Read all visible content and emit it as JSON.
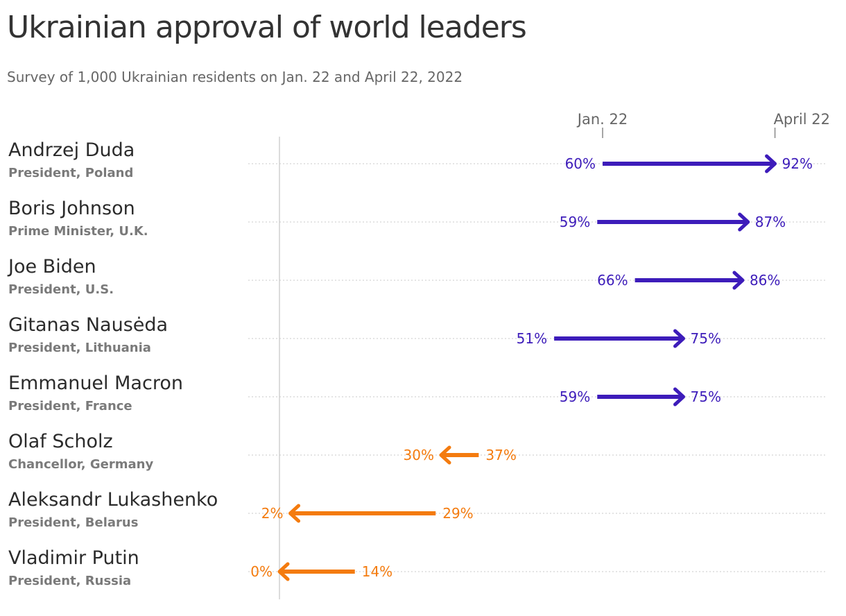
{
  "title": "Ukrainian approval of world leaders",
  "subtitle": "Survey of 1,000 Ukrainian residents on Jan. 22 and April 22, 2022",
  "colors": {
    "increase": "#3d1cba",
    "decrease": "#f47b0e",
    "grid": "#c8c8c8",
    "axis": "#d0d0d0"
  },
  "chart_data": {
    "type": "arrow",
    "columns": [
      "Jan. 22",
      "April 22"
    ],
    "unit": "%",
    "xlim": [
      0,
      100
    ],
    "rows": [
      {
        "name": "Andrzej Duda",
        "role": "President, Poland",
        "start": 60,
        "end": 92
      },
      {
        "name": "Boris Johnson",
        "role": "Prime Minister, U.K.",
        "start": 59,
        "end": 87
      },
      {
        "name": "Joe Biden",
        "role": "President, U.S.",
        "start": 66,
        "end": 86
      },
      {
        "name": "Gitanas Nausėda",
        "role": "President, Lithuania",
        "start": 51,
        "end": 75
      },
      {
        "name": "Emmanuel Macron",
        "role": "President, France",
        "start": 59,
        "end": 75
      },
      {
        "name": "Olaf Scholz",
        "role": "Chancellor, Germany",
        "start": 37,
        "end": 30
      },
      {
        "name": "Aleksandr Lukashenko",
        "role": "President, Belarus",
        "start": 29,
        "end": 2
      },
      {
        "name": "Vladimir Putin",
        "role": "President, Russia",
        "start": 14,
        "end": 0
      }
    ]
  }
}
